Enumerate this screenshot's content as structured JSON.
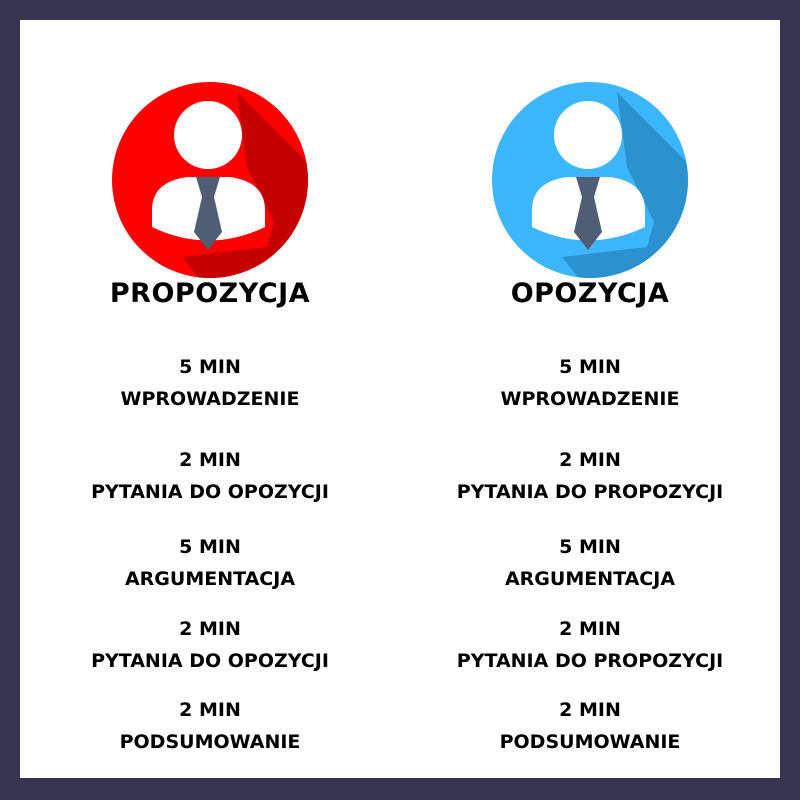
{
  "colors": {
    "frame": "#383552",
    "panel": "#ffffff",
    "propozycja_circle": "#ff0000",
    "propozycja_shadow": "#c40000",
    "opozycja_circle": "#3cb6fd",
    "opozycja_shadow": "#2b91cf",
    "tie": "#4f5d75",
    "figure": "#ffffff"
  },
  "icons": {
    "avatar": "person-with-tie-icon"
  },
  "teams": [
    {
      "name": "PROPOZYCJA",
      "slots": [
        {
          "duration": "5 MIN",
          "label": "WPROWADZENIE"
        },
        {
          "duration": "2 MIN",
          "label": "PYTANIA DO OPOZYCJI"
        },
        {
          "duration": "5 MIN",
          "label": "ARGUMENTACJA"
        },
        {
          "duration": "2 MIN",
          "label": "PYTANIA DO OPOZYCJI"
        },
        {
          "duration": "2 MIN",
          "label": "PODSUMOWANIE"
        }
      ]
    },
    {
      "name": "OPOZYCJA",
      "slots": [
        {
          "duration": "5 MIN",
          "label": "WPROWADZENIE"
        },
        {
          "duration": "2 MIN",
          "label": "PYTANIA DO PROPOZYCJI"
        },
        {
          "duration": "5 MIN",
          "label": "ARGUMENTACJA"
        },
        {
          "duration": "2 MIN",
          "label": "PYTANIA DO PROPOZYCJI"
        },
        {
          "duration": "2 MIN",
          "label": "PODSUMOWANIE"
        }
      ]
    }
  ]
}
